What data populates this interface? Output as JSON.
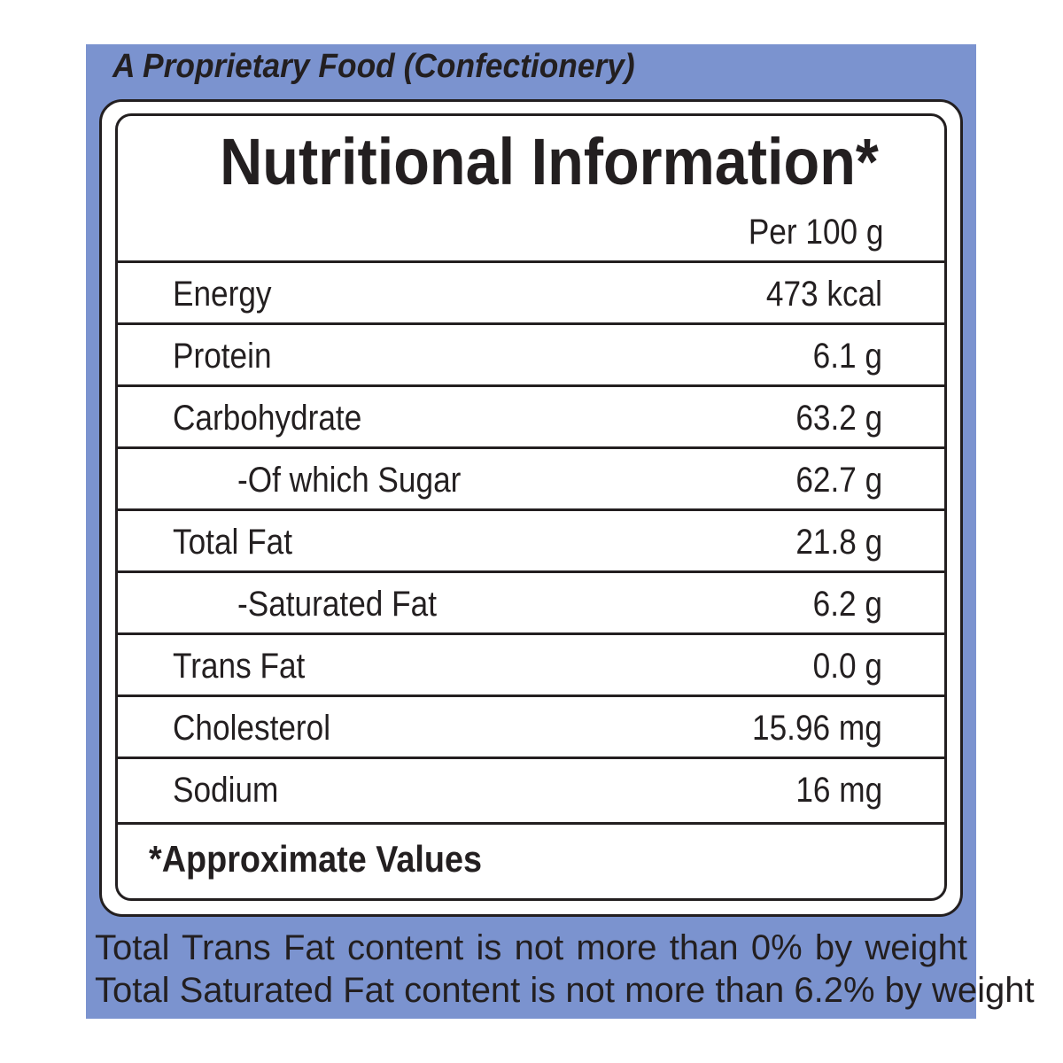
{
  "header": {
    "subtitle": "A Proprietary Food (Confectionery)"
  },
  "table": {
    "title": "Nutritional Information*",
    "basis": "Per 100 g",
    "rows": [
      [
        "Energy",
        "473 kcal"
      ],
      [
        "Protein",
        "6.1 g"
      ],
      [
        "Carbohydrate",
        "63.2 g"
      ],
      [
        "-Of which Sugar",
        "62.7 g"
      ],
      [
        "Total Fat",
        "21.8 g"
      ],
      [
        "-Saturated Fat",
        "6.2 g"
      ],
      [
        "Trans Fat",
        "0.0 g"
      ],
      [
        "Cholesterol",
        "15.96 mg"
      ],
      [
        "Sodium",
        "16 mg"
      ]
    ],
    "footnote": "*Approximate Values"
  },
  "claims": [
    "Total Trans Fat content is not more than 0% by weight",
    "Total Saturated Fat content is not more than 6.2% by weight"
  ]
}
